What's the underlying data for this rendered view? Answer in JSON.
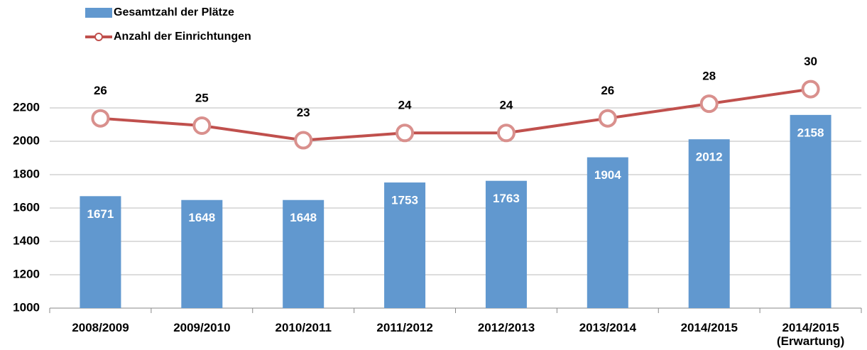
{
  "chart_data": {
    "type": "bar-line",
    "categories": [
      "2008/2009",
      "2009/2010",
      "2010/2011",
      "2011/2012",
      "2012/2013",
      "2013/2014",
      "2014/2015",
      "2014/2015\n(Erwartung)"
    ],
    "series": [
      {
        "name": "Gesamtzahl der Plätze",
        "type": "bar",
        "color": "#6198cf",
        "values": [
          1671,
          1648,
          1648,
          1753,
          1763,
          1904,
          2012,
          2158
        ]
      },
      {
        "name": "Anzahl der Einrichtungen",
        "type": "line",
        "axis": "y2",
        "color": "#c0504d",
        "values": [
          26,
          25,
          23,
          24,
          24,
          26,
          28,
          30
        ]
      }
    ],
    "ylim": [
      1000,
      2400
    ],
    "yticks": [
      1000,
      1200,
      1400,
      1600,
      1800,
      2000,
      2200
    ],
    "y2lim": [
      0,
      32
    ],
    "grid": true,
    "legend": "top-left"
  }
}
